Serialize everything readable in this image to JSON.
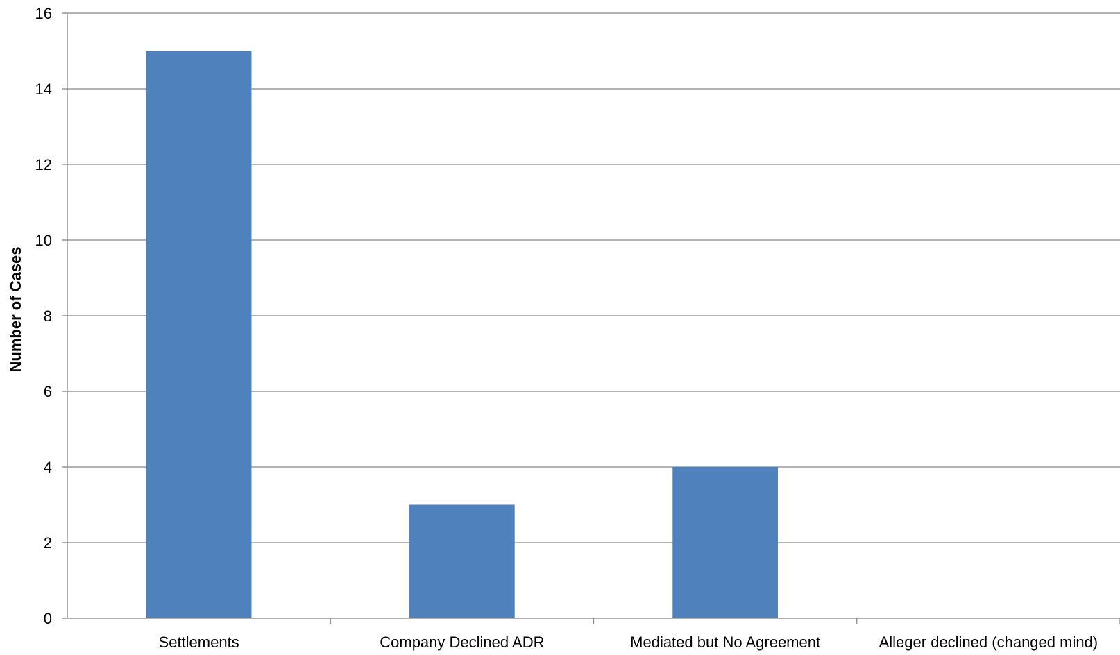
{
  "chart_data": {
    "type": "bar",
    "title": "",
    "xlabel": "",
    "ylabel": "Number of Cases",
    "categories": [
      "Settlements",
      "Company Declined ADR",
      "Mediated but No Agreement",
      "Alleger declined (changed mind)"
    ],
    "values": [
      15,
      3,
      4,
      0
    ],
    "ylim": [
      0,
      16
    ],
    "yticks": [
      0,
      2,
      4,
      6,
      8,
      10,
      12,
      14,
      16
    ],
    "grid": true,
    "legend": "none",
    "bar_color": "#4f81bd",
    "grid_color": "#868686"
  }
}
